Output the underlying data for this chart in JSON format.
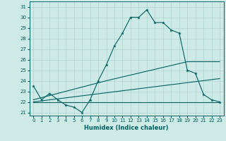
{
  "xlabel": "Humidex (Indice chaleur)",
  "bg_color": "#ceeae6",
  "line_color": "#006060",
  "grid_color": "#aed4d0",
  "xlim": [
    -0.5,
    23.5
  ],
  "ylim": [
    20.7,
    31.5
  ],
  "yticks": [
    21,
    22,
    23,
    24,
    25,
    26,
    27,
    28,
    29,
    30,
    31
  ],
  "xticks": [
    0,
    1,
    2,
    3,
    4,
    5,
    6,
    7,
    8,
    9,
    10,
    11,
    12,
    13,
    14,
    15,
    16,
    17,
    18,
    19,
    20,
    21,
    22,
    23
  ],
  "series1_x": [
    0,
    1,
    2,
    3,
    4,
    5,
    6,
    7,
    8,
    9,
    10,
    11,
    12,
    13,
    14,
    15,
    16,
    17,
    18,
    19,
    20,
    21,
    22,
    23
  ],
  "series1_y": [
    23.5,
    22.2,
    22.8,
    22.2,
    21.7,
    21.5,
    21.0,
    22.2,
    24.0,
    25.5,
    27.3,
    28.5,
    30.0,
    30.0,
    30.7,
    29.5,
    29.5,
    28.8,
    28.5,
    25.0,
    24.7,
    22.7,
    22.2,
    22.0
  ],
  "series2_x": [
    0,
    10,
    19,
    23
  ],
  "series2_y": [
    22.0,
    22.0,
    22.0,
    22.0
  ],
  "series3_x": [
    0,
    9,
    19,
    23
  ],
  "series3_y": [
    22.2,
    24.0,
    25.8,
    25.8
  ],
  "series4_x": [
    0,
    23
  ],
  "series4_y": [
    22.0,
    24.2
  ]
}
